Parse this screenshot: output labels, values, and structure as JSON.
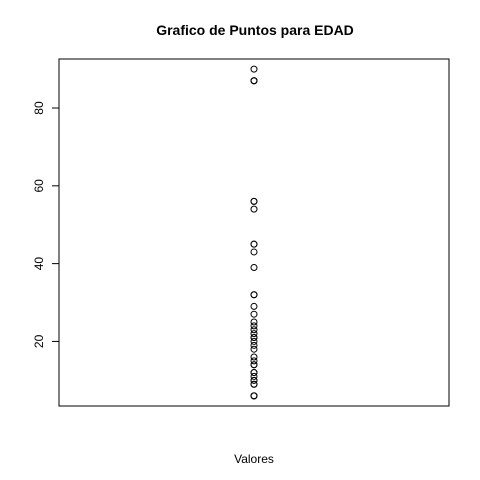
{
  "chart_data": {
    "type": "scatter",
    "title": "Grafico de Puntos para EDAD",
    "xlabel": "Valores",
    "ylabel": "",
    "ylim": [
      3.4,
      92.6
    ],
    "yticks": [
      20,
      40,
      60,
      80
    ],
    "x": [
      1,
      1,
      1,
      1,
      1,
      1,
      1,
      1,
      1,
      1,
      1,
      1,
      1,
      1,
      1,
      1,
      1,
      1,
      1,
      1,
      1,
      1,
      1,
      1,
      1,
      1,
      1,
      1,
      1,
      1,
      1,
      1,
      1,
      1,
      1,
      1,
      1,
      1
    ],
    "values": [
      90,
      87,
      87,
      87,
      56,
      56,
      54,
      45,
      45,
      43,
      39,
      32,
      32,
      29,
      27,
      25,
      24,
      23,
      22,
      21,
      21,
      20,
      19,
      18,
      16,
      15,
      14,
      14,
      12,
      12,
      11,
      10,
      10,
      9,
      9,
      6,
      6,
      6
    ],
    "grid": false,
    "legend": "none"
  }
}
